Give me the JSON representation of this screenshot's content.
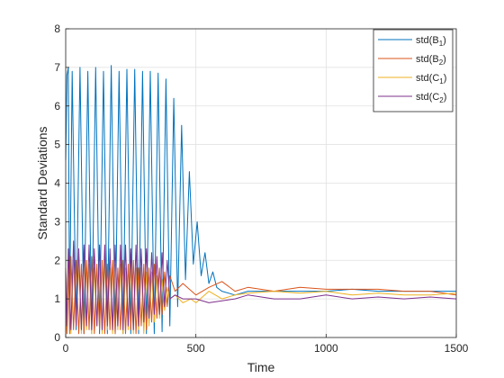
{
  "chart_data": {
    "type": "line",
    "title": "",
    "xlabel": "Time",
    "ylabel": "Standard Deviations",
    "xlim": [
      0,
      1500
    ],
    "ylim": [
      0,
      8
    ],
    "xticks": [
      0,
      500,
      1000,
      1500
    ],
    "yticks": [
      0,
      1,
      2,
      3,
      4,
      5,
      6,
      7,
      8
    ],
    "grid": true,
    "legend_position": "top-right",
    "series": [
      {
        "name": "std(B1)",
        "legend": {
          "base": "std(B",
          "sub": "1",
          "close": ")"
        },
        "color": "#0072BD",
        "x": [
          0,
          5,
          10,
          15,
          25,
          40,
          55,
          70,
          85,
          100,
          115,
          130,
          145,
          160,
          175,
          190,
          205,
          220,
          235,
          250,
          265,
          280,
          295,
          310,
          325,
          340,
          355,
          370,
          385,
          400,
          415,
          430,
          445,
          460,
          475,
          490,
          505,
          520,
          535,
          550,
          565,
          580,
          600,
          650,
          700,
          800,
          900,
          1000,
          1100,
          1200,
          1300,
          1400,
          1500
        ],
        "y": [
          4.6,
          6.8,
          7.0,
          0.5,
          6.9,
          0.2,
          7.0,
          0.1,
          6.9,
          0.1,
          7.0,
          0.1,
          6.9,
          0.1,
          7.05,
          0.1,
          6.9,
          0.1,
          6.95,
          0.1,
          6.95,
          0.1,
          6.9,
          0.1,
          6.9,
          0.1,
          6.85,
          0.15,
          6.7,
          0.3,
          6.2,
          0.8,
          5.5,
          1.5,
          4.3,
          1.9,
          3.0,
          1.6,
          2.2,
          1.4,
          1.7,
          1.3,
          1.2,
          1.1,
          1.2,
          1.2,
          1.2,
          1.2,
          1.25,
          1.2,
          1.2,
          1.2,
          1.2
        ]
      },
      {
        "name": "std(B2)",
        "legend": {
          "base": "std(B",
          "sub": "2",
          "close": ")"
        },
        "color": "#D95319",
        "x": [
          0,
          5,
          10,
          15,
          20,
          30,
          40,
          50,
          60,
          70,
          80,
          90,
          100,
          110,
          120,
          130,
          140,
          150,
          160,
          170,
          180,
          190,
          200,
          210,
          220,
          230,
          240,
          250,
          260,
          270,
          280,
          290,
          300,
          310,
          320,
          330,
          340,
          350,
          360,
          370,
          380,
          390,
          400,
          420,
          450,
          500,
          550,
          600,
          650,
          700,
          800,
          900,
          1000,
          1100,
          1200,
          1300,
          1400,
          1500
        ],
        "y": [
          1.8,
          0.1,
          2.0,
          0.1,
          2.1,
          0.2,
          2.0,
          0.1,
          1.9,
          0.1,
          2.0,
          0.2,
          2.1,
          0.1,
          1.9,
          0.2,
          2.0,
          0.1,
          1.9,
          0.2,
          2.0,
          0.1,
          1.8,
          0.2,
          2.0,
          0.1,
          1.9,
          0.2,
          2.0,
          0.1,
          1.8,
          0.3,
          1.9,
          0.2,
          1.8,
          0.4,
          1.9,
          0.5,
          1.8,
          0.6,
          1.7,
          0.8,
          1.6,
          1.2,
          1.4,
          1.1,
          1.3,
          1.45,
          1.2,
          1.3,
          1.2,
          1.3,
          1.25,
          1.25,
          1.25,
          1.2,
          1.2,
          1.1
        ]
      },
      {
        "name": "std(C1)",
        "legend": {
          "base": "std(C",
          "sub": "1",
          "close": ")"
        },
        "color": "#EDB120",
        "x": [
          0,
          10,
          20,
          30,
          40,
          50,
          60,
          70,
          80,
          90,
          100,
          110,
          120,
          130,
          140,
          150,
          160,
          170,
          180,
          190,
          200,
          210,
          220,
          230,
          240,
          250,
          260,
          270,
          280,
          290,
          300,
          310,
          320,
          330,
          340,
          350,
          360,
          370,
          380,
          390,
          400,
          420,
          450,
          480,
          500,
          550,
          600,
          650,
          700,
          800,
          900,
          1000,
          1100,
          1200,
          1300,
          1400,
          1500
        ],
        "y": [
          0.1,
          1.9,
          0.1,
          2.0,
          0.3,
          1.9,
          0.1,
          2.0,
          0.2,
          1.9,
          0.1,
          1.8,
          0.3,
          1.9,
          0.1,
          2.0,
          0.2,
          1.8,
          0.1,
          1.9,
          0.2,
          1.9,
          0.1,
          1.8,
          0.2,
          1.9,
          0.1,
          1.8,
          0.2,
          1.8,
          0.1,
          1.7,
          0.3,
          1.7,
          0.4,
          1.6,
          0.5,
          1.5,
          0.7,
          1.3,
          1.0,
          1.1,
          0.9,
          1.0,
          0.9,
          1.2,
          1.0,
          1.1,
          1.15,
          1.2,
          1.15,
          1.2,
          1.1,
          1.15,
          1.1,
          1.1,
          1.15
        ]
      },
      {
        "name": "std(C2)",
        "legend": {
          "base": "std(C",
          "sub": "2",
          "close": ")"
        },
        "color": "#7E2F8E",
        "x": [
          0,
          5,
          10,
          20,
          30,
          40,
          50,
          60,
          70,
          80,
          90,
          100,
          110,
          120,
          130,
          140,
          150,
          160,
          170,
          180,
          190,
          200,
          210,
          220,
          230,
          240,
          250,
          260,
          270,
          280,
          290,
          300,
          310,
          320,
          330,
          340,
          350,
          360,
          370,
          380,
          390,
          400,
          420,
          450,
          500,
          550,
          600,
          650,
          700,
          800,
          900,
          1000,
          1100,
          1200,
          1300,
          1400,
          1500
        ],
        "y": [
          1.7,
          0.3,
          2.3,
          0.2,
          2.5,
          0.3,
          2.3,
          0.2,
          2.4,
          0.3,
          2.4,
          0.2,
          2.3,
          0.3,
          2.4,
          0.2,
          2.4,
          0.3,
          2.3,
          0.2,
          2.4,
          0.3,
          2.4,
          0.2,
          2.4,
          0.3,
          2.3,
          0.2,
          2.4,
          0.3,
          2.3,
          0.4,
          2.3,
          0.5,
          2.2,
          0.6,
          2.1,
          0.6,
          2.2,
          0.8,
          2.0,
          1.0,
          1.1,
          1.0,
          1.0,
          0.9,
          0.95,
          1.0,
          1.1,
          1.0,
          1.0,
          1.1,
          1.0,
          1.05,
          1.0,
          1.05,
          1.0
        ]
      }
    ]
  }
}
